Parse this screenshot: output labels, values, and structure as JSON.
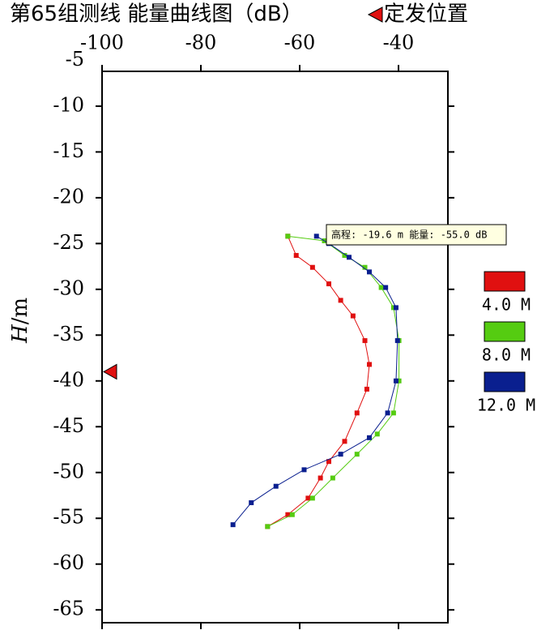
{
  "chart_data": {
    "type": "scatter",
    "title": "第65组测线 能量曲线图（dB）",
    "y_label_main": "H",
    "y_label_unit": "/m",
    "xlim": [
      -100,
      -30
    ],
    "xticks": [
      -100,
      -80,
      -60,
      -40
    ],
    "ylim": [
      -66.4,
      -6.2
    ],
    "yticks": [
      -5,
      -10,
      -15,
      -20,
      -25,
      -30,
      -35,
      -40,
      -45,
      -50,
      -55,
      -60,
      -65
    ],
    "source_marker": {
      "label": "定发位置",
      "color": "#e01010",
      "x": -100,
      "y": -39
    },
    "tooltip": "高程: -19.6 m 能量: -55.0 dB",
    "series": [
      {
        "name": "4.0 M",
        "color": "#e01010",
        "x": [
          -62.4,
          -60.7,
          -57.4,
          -54.1,
          -51.7,
          -49.2,
          -46.8,
          -45.9,
          -46.4,
          -48.4,
          -50.9,
          -54.1,
          -55.8,
          -58.3,
          -62.4,
          -66.5
        ],
        "values": [
          -24.2,
          -26.3,
          -27.6,
          -29.4,
          -31.2,
          -32.9,
          -35.6,
          -38.2,
          -40.9,
          -43.5,
          -46.6,
          -48.8,
          -50.6,
          -52.8,
          -54.6,
          -55.9
        ]
      },
      {
        "name": "8.0 M",
        "color": "#55cc11",
        "x": [
          -62.4,
          -55.0,
          -50.9,
          -46.8,
          -43.5,
          -41.0,
          -39.9,
          -39.9,
          -41.0,
          -44.3,
          -48.4,
          -53.3,
          -57.4,
          -61.5,
          -66.5
        ],
        "values": [
          -24.2,
          -24.7,
          -26.3,
          -27.6,
          -29.8,
          -32.0,
          -35.6,
          -40.0,
          -43.5,
          -45.8,
          -48.0,
          -50.6,
          -52.8,
          -54.6,
          -55.9
        ]
      },
      {
        "name": "12.0 M",
        "color": "#0a1f8f",
        "x": [
          -56.6,
          -54.1,
          -50.0,
          -45.9,
          -42.6,
          -40.5,
          -40.2,
          -40.5,
          -42.2,
          -45.9,
          -51.7,
          -59.1,
          -64.8,
          -69.8,
          -73.5
        ],
        "values": [
          -24.2,
          -25.0,
          -26.5,
          -28.1,
          -29.8,
          -32.0,
          -35.6,
          -40.0,
          -43.5,
          -46.2,
          -48.0,
          -49.7,
          -51.5,
          -53.3,
          -55.7
        ]
      }
    ]
  }
}
